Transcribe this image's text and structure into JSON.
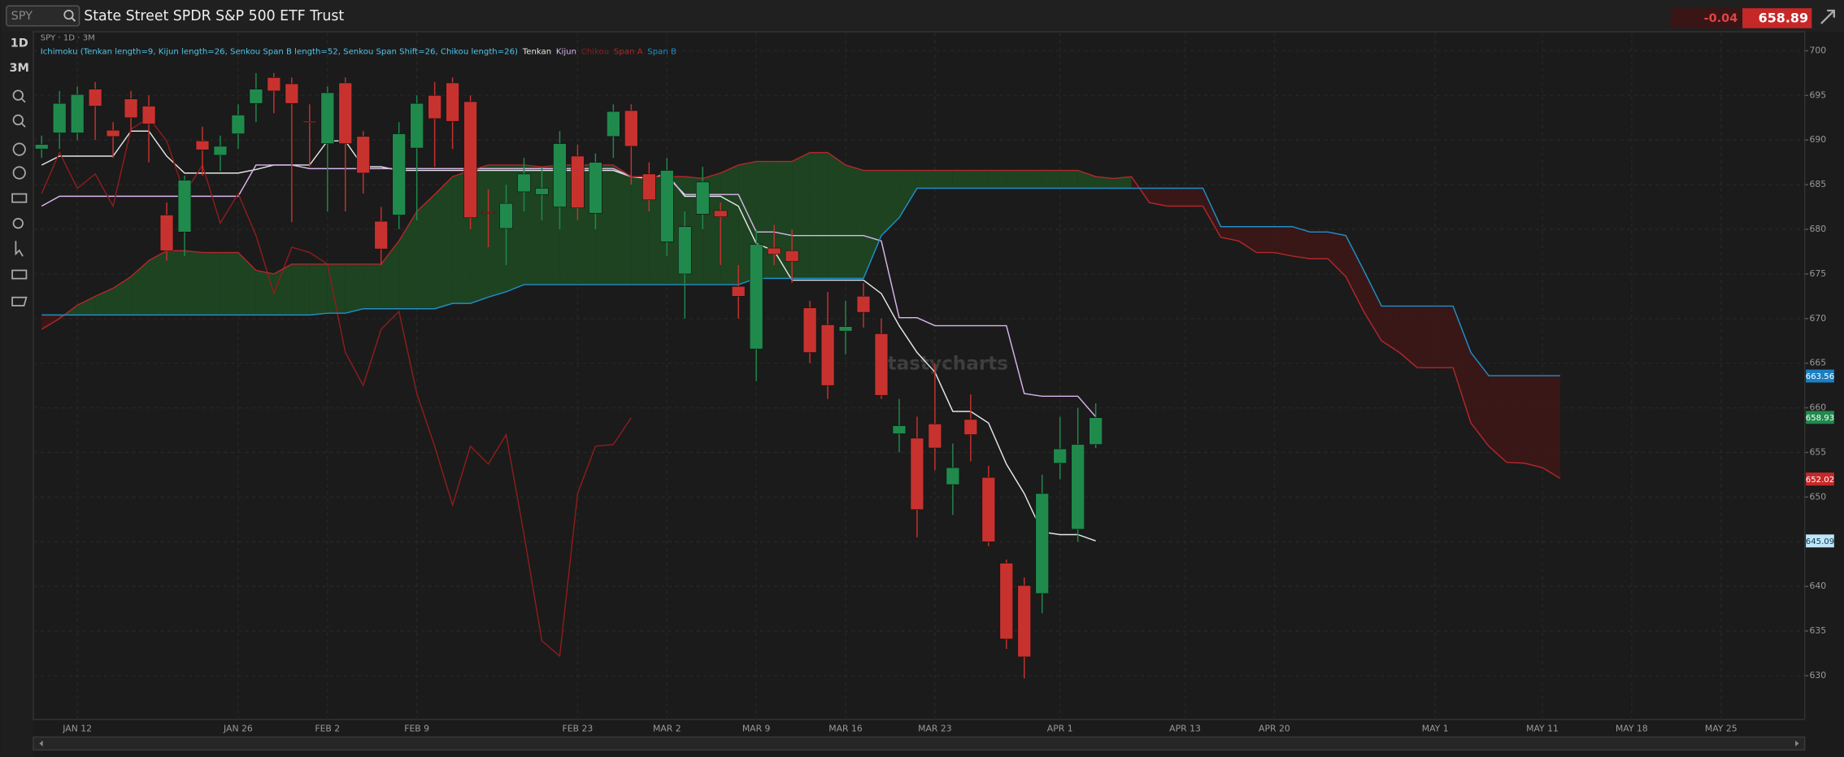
{
  "header": {
    "symbol": "SPY",
    "name": "State Street SPDR S&P 500 ETF Trust",
    "change": -0.04,
    "last": 658.89
  },
  "toolbar": {
    "intervals": [
      "1D",
      "3M"
    ]
  },
  "watermark": "tastycharts",
  "chart_data": {
    "type": "candlestick",
    "title": "SPY · 1D · 3M",
    "indicator": "Ichimoku (Tenkan length=9, Kijun length=26, Senkou Span B length=52, Senkou Span Shift=26, Chikou length=26)",
    "categories": [
      null,
      null,
      "JAN 12",
      null,
      null,
      null,
      null,
      null,
      null,
      null,
      null,
      "JAN 26",
      null,
      null,
      null,
      null,
      "FEB 2",
      null,
      null,
      null,
      null,
      "FEB 9",
      null,
      null,
      null,
      null,
      null,
      null,
      null,
      null,
      "FEB 23",
      null,
      null,
      null,
      null,
      "MAR 2",
      null,
      null,
      null,
      null,
      "MAR 9",
      null,
      null,
      null,
      null,
      "MAR 16",
      null,
      null,
      null,
      null,
      "MAR 23",
      null,
      null,
      null,
      null,
      null,
      null,
      "APR 1",
      null,
      null,
      null,
      null,
      null,
      null,
      "APR 13",
      null,
      null,
      null,
      null,
      "APR 20",
      null,
      null,
      null,
      null,
      null,
      null,
      null,
      null,
      "MAY 1",
      null,
      null,
      null,
      null,
      null,
      "MAY 11",
      null,
      null,
      null,
      null,
      "MAY 18",
      null,
      null,
      null,
      null,
      "MAY 25",
      null
    ],
    "open": [
      689,
      690.8,
      690.8,
      695.7,
      691.1,
      694.6,
      693.8,
      681.6,
      679.7,
      689.9,
      688.3,
      690.7,
      694.1,
      697,
      696.3,
      692.1,
      689.6,
      696.4,
      690.4,
      680.9,
      681.6,
      689.1,
      695,
      696.4,
      694.3,
      681.9,
      680.1,
      684.2,
      683.9,
      682.5,
      688.2,
      681.8,
      690.4,
      693.3,
      686.2,
      678.6,
      675,
      681.7,
      682.1,
      673.6,
      666.6,
      677.9,
      677.6,
      671.2,
      669.3,
      668.6,
      672.5,
      668.3,
      657.1,
      656.6,
      658.2,
      651.4,
      658.7,
      652.2,
      642.6,
      640.1,
      639.2,
      653.8,
      646.4,
      655.9,
      null,
      null,
      null,
      null,
      null,
      null,
      null,
      null,
      null,
      null,
      null,
      null,
      null,
      null,
      null,
      null,
      null,
      null,
      null,
      null,
      null,
      null,
      null,
      null,
      null,
      null,
      null,
      null,
      null,
      null,
      null,
      null,
      null,
      null,
      null,
      null
    ],
    "high": [
      690.5,
      695.5,
      696,
      696.5,
      692,
      695.5,
      695,
      683,
      686,
      691.5,
      690.5,
      694,
      697.5,
      697.5,
      697,
      694,
      696,
      697,
      691,
      682.5,
      692,
      695,
      696.5,
      697,
      695,
      684.5,
      685,
      688,
      687,
      691,
      689.5,
      688.5,
      694,
      694,
      687.5,
      688,
      682,
      687,
      683,
      676,
      680,
      680.5,
      680,
      672,
      673,
      672,
      674,
      670,
      661,
      659,
      665,
      656,
      661.5,
      653.5,
      643,
      641,
      652.5,
      659,
      660,
      660.5,
      null,
      null,
      null,
      null,
      null,
      null,
      null,
      null,
      null,
      null,
      null,
      null,
      null,
      null,
      null,
      null,
      null,
      null,
      null,
      null,
      null,
      null,
      null,
      null,
      null,
      null,
      null,
      null,
      null,
      null,
      null,
      null,
      null,
      null,
      null,
      null
    ],
    "low": [
      688,
      689,
      690,
      690,
      688,
      691,
      687.5,
      676.5,
      677,
      686,
      686.5,
      689,
      692,
      693,
      680.8,
      687,
      682,
      682,
      684,
      676,
      680,
      681,
      687,
      689,
      680,
      678,
      676,
      682,
      681,
      680,
      681,
      680,
      688,
      685,
      682,
      677,
      670,
      680,
      676,
      670,
      663,
      676,
      674,
      665,
      661,
      666,
      669,
      661,
      655,
      645.5,
      653,
      648,
      654,
      644.5,
      633,
      629.7,
      637,
      652,
      645,
      655.5,
      null,
      null,
      null,
      null,
      null,
      null,
      null,
      null,
      null,
      null,
      null,
      null,
      null,
      null,
      null,
      null,
      null,
      null,
      null,
      null,
      null,
      null,
      null,
      null,
      null,
      null,
      null,
      null,
      null,
      null,
      null,
      null,
      null,
      null,
      null,
      null
    ],
    "close": [
      689.5,
      694.1,
      695.1,
      693.8,
      690.4,
      692.5,
      691.8,
      677.6,
      685.5,
      688.9,
      689.3,
      692.8,
      695.7,
      695.5,
      694.1,
      692,
      695.3,
      689.6,
      686.3,
      677.8,
      690.7,
      694.1,
      692.4,
      692.1,
      681.3,
      681.8,
      682.9,
      686.2,
      684.6,
      689.6,
      682.4,
      687.5,
      693.2,
      689.3,
      683.3,
      686.6,
      680.3,
      685.3,
      681.4,
      672.5,
      678.3,
      677.2,
      676.4,
      666.2,
      662.5,
      669.1,
      670.7,
      661.4,
      658,
      648.6,
      655.5,
      653.3,
      657,
      645,
      634.1,
      632.1,
      650.4,
      655.4,
      655.9,
      658.9,
      null,
      null,
      null,
      null,
      null,
      null,
      null,
      null,
      null,
      null,
      null,
      null,
      null,
      null,
      null,
      null,
      null,
      null,
      null,
      null,
      null,
      null,
      null,
      null,
      null,
      null,
      null,
      null,
      null,
      null,
      null,
      null,
      null,
      null,
      null,
      null
    ],
    "up_color": "#1f8a4c",
    "down_color": "#c8322e",
    "series": [
      {
        "name": "Tenkan",
        "color": "#e6e6e6",
        "values": [
          687.2,
          688.2,
          688.2,
          688.2,
          688.2,
          691,
          691,
          688.2,
          686.3,
          686.3,
          686.3,
          686.3,
          686.7,
          687.2,
          687.2,
          687.2,
          689.9,
          689.9,
          687,
          687,
          686.6,
          686.6,
          686.6,
          686.6,
          686.6,
          686.6,
          686.6,
          686.6,
          686.6,
          686.6,
          686.6,
          686.6,
          686.6,
          685.9,
          685.7,
          686.2,
          683.7,
          683.7,
          683.7,
          682.6,
          678.4,
          677.6,
          674.3,
          674.3,
          674.3,
          674.3,
          674.3,
          672.8,
          669.2,
          666.2,
          664,
          659.6,
          659.6,
          658.3,
          653.7,
          650.4,
          646.1,
          645.8,
          645.8,
          645.1,
          null,
          null,
          null,
          null,
          null,
          null,
          null,
          null,
          null,
          null,
          null,
          null,
          null,
          null,
          null,
          null,
          null,
          null,
          null,
          null,
          null,
          null,
          null,
          null,
          null,
          null,
          null,
          null,
          null,
          null,
          null,
          null,
          null,
          null,
          null,
          null
        ]
      },
      {
        "name": "Kijun",
        "color": "#d9b6ec",
        "values": [
          682.6,
          683.7,
          683.7,
          683.7,
          683.7,
          683.7,
          683.7,
          683.7,
          683.7,
          683.7,
          683.7,
          683.7,
          687.2,
          687.2,
          687.2,
          686.8,
          686.8,
          686.8,
          686.8,
          686.8,
          686.8,
          686.8,
          686.8,
          686.8,
          686.8,
          686.8,
          686.8,
          686.8,
          686.8,
          686.8,
          686.8,
          686.8,
          686.8,
          685.9,
          685.9,
          685.9,
          683.9,
          683.9,
          683.9,
          683.9,
          679.7,
          679.7,
          679.3,
          679.3,
          679.3,
          679.3,
          679.3,
          678.7,
          670.1,
          670.1,
          669.2,
          669.2,
          669.2,
          669.2,
          669.2,
          661.6,
          661.3,
          661.3,
          661.3,
          659,
          null,
          null,
          null,
          null,
          null,
          null,
          null,
          null,
          null,
          null,
          null,
          null,
          null,
          null,
          null,
          null,
          null,
          null,
          null,
          null,
          null,
          null,
          null,
          null,
          null,
          null,
          null,
          null,
          null,
          null,
          null,
          null,
          null,
          null,
          null,
          null
        ]
      },
      {
        "name": "Chikou",
        "color": "#8e1c1c",
        "values": [
          684,
          688.6,
          684.6,
          686.2,
          682.6,
          691.2,
          692.5,
          689.9,
          684,
          687.2,
          680.7,
          684,
          679.3,
          672.8,
          678,
          677.4,
          676.1,
          666.2,
          662.5,
          668.8,
          670.8,
          661.6,
          655.7,
          649.1,
          655.7,
          653.7,
          657,
          645.8,
          633.9,
          632.2,
          650.4,
          655.7,
          655.9,
          658.9,
          null,
          null,
          null,
          null,
          null,
          null,
          null,
          null,
          null,
          null,
          null,
          null,
          null,
          null,
          null,
          null,
          null,
          null,
          null,
          null,
          null,
          null,
          null,
          null,
          null,
          null,
          null,
          null,
          null,
          null,
          null,
          null,
          null,
          null,
          null,
          null,
          null,
          null,
          null,
          null,
          null,
          null,
          null,
          null,
          null,
          null,
          null,
          null,
          null,
          null,
          null,
          null,
          null,
          null,
          null,
          null,
          null,
          null,
          null,
          null,
          null,
          null
        ]
      },
      {
        "name": "Span A",
        "color": "#b3262a",
        "values": [
          668.8,
          670,
          671.5,
          672.5,
          673.4,
          674.7,
          676.5,
          677.6,
          677.6,
          677.4,
          677.4,
          677.4,
          675.4,
          675,
          676.1,
          676.1,
          676.1,
          676.1,
          676.1,
          676.1,
          678.7,
          682,
          683.9,
          685.9,
          686.6,
          687.2,
          687.2,
          687.2,
          687,
          687.2,
          687.2,
          687.2,
          687.2,
          685.9,
          685.9,
          685.9,
          685.9,
          685.7,
          686.3,
          687.2,
          687.6,
          687.6,
          687.6,
          688.6,
          688.6,
          687.2,
          686.6,
          686.6,
          686.6,
          686.6,
          686.6,
          686.6,
          686.6,
          686.6,
          686.6,
          686.6,
          686.6,
          686.6,
          686.6,
          685.9,
          685.7,
          685.9,
          683,
          682.6,
          682.6,
          682.6,
          679.1,
          678.7,
          677.4,
          677.4,
          677,
          676.7,
          676.7,
          674.7,
          670.8,
          667.5,
          666.2,
          664.5,
          664.5,
          664.5,
          658.3,
          655.7,
          653.9,
          653.8,
          653.3,
          652.1,
          null,
          null,
          null,
          null,
          null,
          null,
          null,
          null,
          null,
          null
        ]
      },
      {
        "name": "Span B",
        "color": "#1f8fc9",
        "values": [
          670.4,
          670.4,
          670.4,
          670.4,
          670.4,
          670.4,
          670.4,
          670.4,
          670.4,
          670.4,
          670.4,
          670.4,
          670.4,
          670.4,
          670.4,
          670.4,
          670.6,
          670.6,
          671.1,
          671.1,
          671.1,
          671.1,
          671.1,
          671.7,
          671.7,
          672.4,
          673,
          673.8,
          673.8,
          673.8,
          673.8,
          673.8,
          673.8,
          673.8,
          673.8,
          673.8,
          673.8,
          673.8,
          673.8,
          673.8,
          674.5,
          674.5,
          674.5,
          674.5,
          674.5,
          674.5,
          674.5,
          679.3,
          681.3,
          684.6,
          684.6,
          684.6,
          684.6,
          684.6,
          684.6,
          684.6,
          684.6,
          684.6,
          684.6,
          684.6,
          684.6,
          684.6,
          684.6,
          684.6,
          684.6,
          684.6,
          680.3,
          680.3,
          680.3,
          680.3,
          680.3,
          679.7,
          679.7,
          679.3,
          675.4,
          671.4,
          671.4,
          671.4,
          671.4,
          671.4,
          666.2,
          663.6,
          663.6,
          663.6,
          663.6,
          663.6,
          null,
          null,
          null,
          null,
          null,
          null,
          null,
          null,
          null,
          null
        ]
      }
    ],
    "cloud_up_color": "#1d4a22",
    "cloud_down_color": "#3e1616",
    "ylim": [
      625.1,
      702
    ],
    "yticks": [
      630,
      635,
      640,
      645,
      650,
      655,
      660,
      665,
      670,
      675,
      680,
      685,
      690,
      695,
      700
    ],
    "grid": true,
    "price_markers": [
      {
        "value": 663.56,
        "color": "#1b7fc2"
      },
      {
        "value": 658.93,
        "color": "#1f8a4c"
      },
      {
        "value": 652.02,
        "color": "#c62828"
      },
      {
        "value": 645.09,
        "color": "#bfe6f7"
      }
    ]
  }
}
